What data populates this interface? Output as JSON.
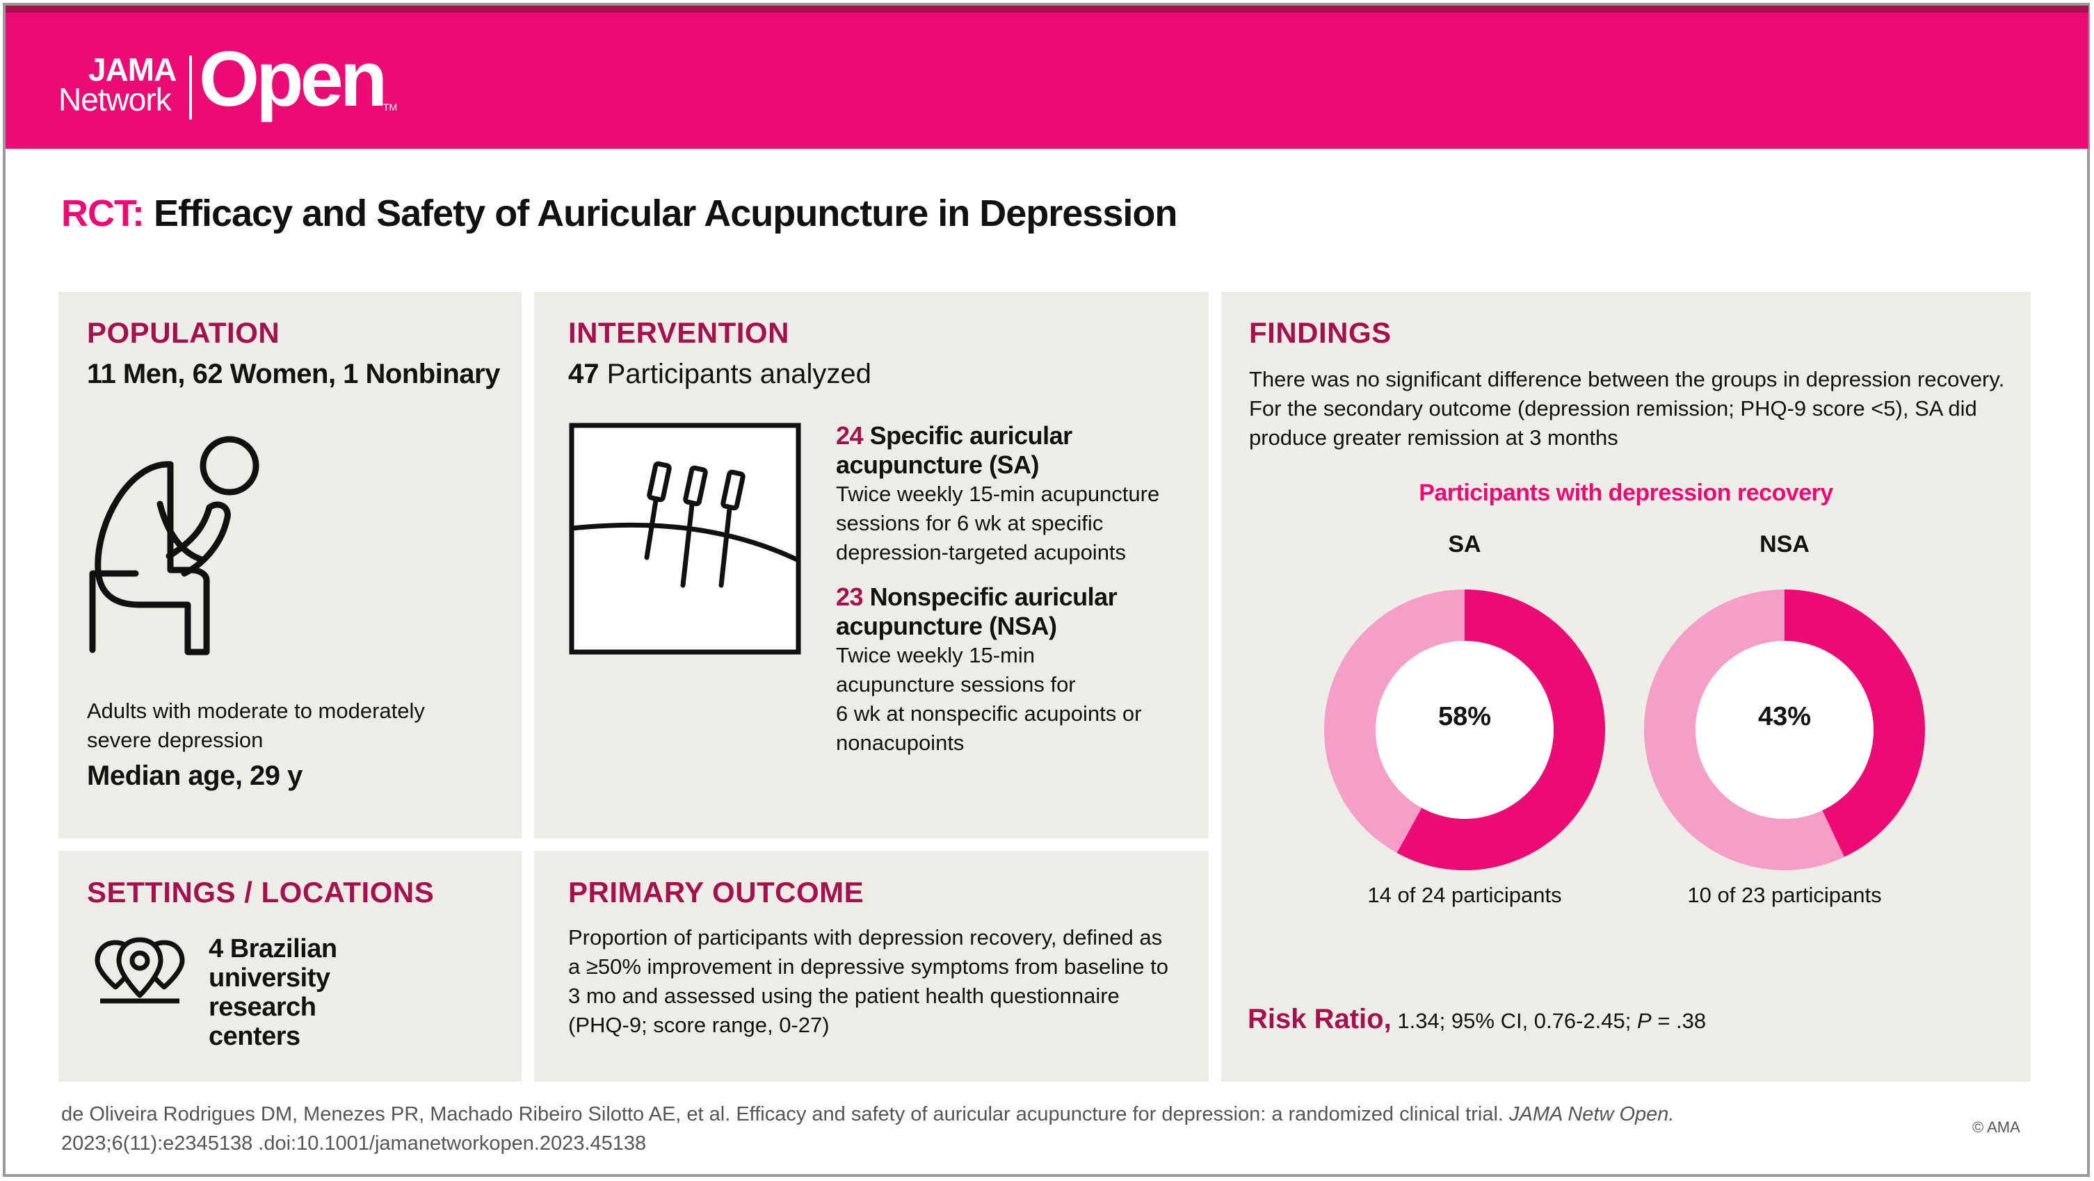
{
  "brand": {
    "jama": "JAMA",
    "network": "Network",
    "open": "Open",
    "tm": "TM",
    "header_color": "#ec0b75",
    "accent_color": "#a3124e"
  },
  "title": {
    "prefix": "RCT:",
    "text": "Efficacy and Safety of Auricular Acupuncture in Depression"
  },
  "population": {
    "heading": "POPULATION",
    "summary": "11 Men, 62 Women, 1 Nonbinary",
    "icon": "seated-depressed-person-icon",
    "desc_line1": "Adults with moderate to moderately",
    "desc_line2": "severe depression",
    "median_age": "Median age, 29 y"
  },
  "settings": {
    "heading": "SETTINGS / LOCATIONS",
    "icon": "location-pins-icon",
    "line1": "4 Brazilian",
    "line2": "university",
    "line3": "research",
    "line4": "centers"
  },
  "intervention": {
    "heading": "INTERVENTION",
    "count": "47",
    "count_label": "Participants analyzed",
    "icon": "acupuncture-needles-icon",
    "sa": {
      "n": "24",
      "title_line1": "Specific auricular",
      "title_line2": "acupuncture (SA)",
      "desc_line1": "Twice weekly 15-min acupuncture",
      "desc_line2": "sessions for 6 wk at specific",
      "desc_line3": "depression-targeted acupoints"
    },
    "nsa": {
      "n": "23",
      "title_line1": "Nonspecific auricular",
      "title_line2": "acupuncture (NSA)",
      "desc_line1": "Twice weekly 15-min",
      "desc_line2": "acupuncture sessions for",
      "desc_line3": "6 wk at nonspecific acupoints or",
      "desc_line4": "nonacupoints"
    }
  },
  "primary_outcome": {
    "heading": "PRIMARY OUTCOME",
    "line1": "Proportion of participants with depression recovery, defined as",
    "line2": "a ≥50% improvement in depressive symptoms from baseline to",
    "line3": "3 mo and assessed using the patient health questionnaire",
    "line4": "(PHQ-9; score range, 0-27)"
  },
  "findings": {
    "heading": "FINDINGS",
    "line1": "There was no significant difference between the groups in depression recovery.",
    "line2": "For the secondary outcome (depression remission; PHQ-9 score <5), SA did",
    "line3": "produce greater remission at 3 months",
    "risk_label": "Risk Ratio,",
    "risk_pre": "1.34; 95% CI, 0.76-2.45; ",
    "risk_p": "P",
    "risk_post": " = .38"
  },
  "chart_data": {
    "type": "pie",
    "title": "Participants with depression recovery",
    "series": [
      {
        "name": "SA",
        "value": 58,
        "label": "58%",
        "caption": "14 of 24 participants",
        "recovered": 14,
        "total": 24
      },
      {
        "name": "NSA",
        "value": 43,
        "label": "43%",
        "caption": "10 of 23 participants",
        "recovered": 10,
        "total": 23
      }
    ],
    "colors": {
      "recovered": "#ec0b75",
      "not_recovered": "#f59ec8"
    }
  },
  "footer": {
    "citation_line1": "de Oliveira Rodrigues DM, Menezes PR, Machado Ribeiro Silotto AE, et al. Efficacy and safety of auricular acupuncture for depression: a randomized clinical trial.",
    "journal": "JAMA Netw Open.",
    "citation_line2": "2023;6(11):e2345138 .doi:10.1001/jamanetworkopen.2023.45138",
    "copyright": "© AMA"
  }
}
